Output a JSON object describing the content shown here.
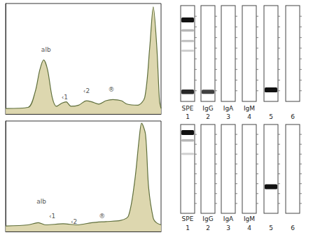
{
  "chart_data": [
    {
      "type": "line",
      "xlim": [
        0,
        100
      ],
      "ylim": [
        0,
        100
      ],
      "tick_labels": false,
      "grid": false,
      "color": "#5f6f3c",
      "x": [
        0,
        14.5,
        19,
        22,
        24.5,
        27,
        30,
        32.7,
        36.4,
        39,
        42,
        47,
        52,
        55.5,
        60,
        64.5,
        69,
        74.5,
        78,
        85,
        89.5,
        92.7,
        95,
        97.3,
        99,
        100
      ],
      "values": [
        5,
        6,
        20,
        40,
        49,
        40,
        15,
        7,
        10,
        11,
        7,
        8,
        12,
        11,
        9,
        12,
        13,
        12,
        9,
        8,
        15,
        60,
        97,
        60,
        12,
        5
      ],
      "annotations": [
        {
          "text": "alb",
          "x": 26,
          "y": 58
        },
        {
          "text": "‹1",
          "x": 38,
          "y": 15
        },
        {
          "text": "‹2",
          "x": 52,
          "y": 21
        },
        {
          "text": "®",
          "x": 68,
          "y": 22
        }
      ]
    },
    {
      "type": "line",
      "xlim": [
        0,
        100
      ],
      "ylim": [
        0,
        100
      ],
      "tick_labels": false,
      "grid": false,
      "color": "#5f6f3c",
      "x": [
        0,
        14.5,
        21,
        26,
        37,
        46,
        55.5,
        64.5,
        74,
        79,
        83,
        86,
        87.5,
        90,
        92,
        95,
        97,
        100
      ],
      "values": [
        5,
        6,
        8,
        6,
        7,
        6,
        8,
        9,
        10,
        14,
        45,
        85,
        98,
        88,
        40,
        12,
        8,
        6
      ],
      "annotations": [
        {
          "text": "alb",
          "x": 23,
          "y": 27
        },
        {
          "text": "‹1",
          "x": 30,
          "y": 14
        },
        {
          "text": "‹2",
          "x": 44,
          "y": 9
        },
        {
          "text": "®",
          "x": 62,
          "y": 14
        }
      ]
    }
  ],
  "gels": [
    {
      "lanes": [
        {
          "label": "SPE",
          "number": 1,
          "bands": [
            {
              "position": 15,
              "intensity": 1.0
            },
            {
              "position": 26,
              "intensity": 0.3
            },
            {
              "position": 37,
              "intensity": 0.25
            },
            {
              "position": 47,
              "intensity": 0.2
            },
            {
              "position": 90,
              "intensity": 0.9
            }
          ]
        },
        {
          "label": "IgG",
          "number": 2,
          "bands": [
            {
              "position": 90,
              "intensity": 0.8
            }
          ]
        },
        {
          "label": "IgA",
          "number": 3,
          "bands": []
        },
        {
          "label": "IgM",
          "number": 4,
          "bands": []
        },
        {
          "label": null,
          "number": 5,
          "bands": [
            {
              "position": 88,
              "intensity": 1.0
            }
          ]
        },
        {
          "label": null,
          "number": 6,
          "bands": []
        }
      ]
    },
    {
      "lanes": [
        {
          "label": "SPE",
          "number": 1,
          "bands": [
            {
              "position": 9,
              "intensity": 1.0
            },
            {
              "position": 18,
              "intensity": 0.3
            },
            {
              "position": 33,
              "intensity": 0.2
            }
          ]
        },
        {
          "label": "IgG",
          "number": 2,
          "bands": []
        },
        {
          "label": "IgA",
          "number": 3,
          "bands": []
        },
        {
          "label": "IgM",
          "number": 4,
          "bands": []
        },
        {
          "label": null,
          "number": 5,
          "bands": [
            {
              "position": 70,
              "intensity": 1.0
            }
          ]
        },
        {
          "label": null,
          "number": 6,
          "bands": []
        }
      ]
    }
  ]
}
